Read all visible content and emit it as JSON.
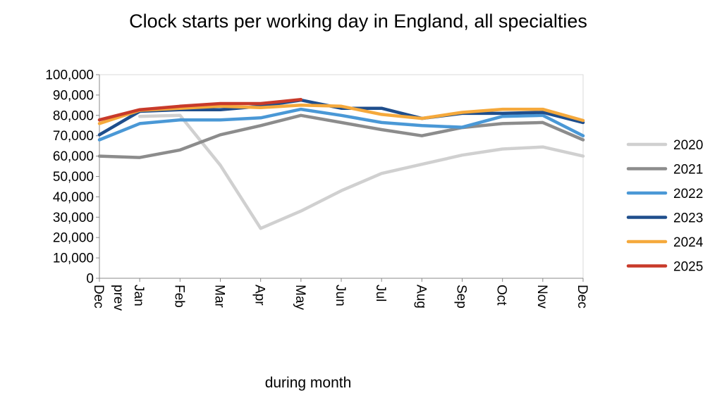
{
  "chart_data": {
    "type": "line",
    "title": "Clock starts per working day in England, all specialties",
    "xlabel": "during month",
    "ylabel": "",
    "categories": [
      "Dec prev",
      "Jan",
      "Feb",
      "Mar",
      "Apr",
      "May",
      "Jun",
      "Jul",
      "Aug",
      "Sep",
      "Oct",
      "Nov",
      "Dec"
    ],
    "ylim": [
      0,
      100000
    ],
    "yticks": [
      "0",
      "10,000",
      "20,000",
      "30,000",
      "40,000",
      "50,000",
      "60,000",
      "70,000",
      "80,000",
      "90,000",
      "100,000"
    ],
    "grid": false,
    "legend_position": "right",
    "series": [
      {
        "name": "2020",
        "color": "#d0d0d0",
        "values": [
          null,
          79500,
          80000,
          55500,
          24500,
          33000,
          43000,
          51500,
          56000,
          60500,
          63500,
          64500,
          60000
        ]
      },
      {
        "name": "2021",
        "color": "#8c8c8c",
        "values": [
          60000,
          59300,
          63000,
          70500,
          75000,
          80000,
          76500,
          73000,
          70000,
          74000,
          76000,
          76500,
          68000
        ]
      },
      {
        "name": "2022",
        "color": "#4a98d6",
        "values": [
          68000,
          76000,
          77800,
          77800,
          78800,
          83000,
          80000,
          76500,
          75000,
          74200,
          79500,
          80000,
          70000
        ]
      },
      {
        "name": "2023",
        "color": "#1f4e8c",
        "values": [
          70500,
          82000,
          82800,
          82800,
          84500,
          87500,
          83500,
          83500,
          78500,
          81000,
          81000,
          81500,
          76500
        ]
      },
      {
        "name": "2024",
        "color": "#f5a93c",
        "values": [
          76000,
          82500,
          83500,
          84500,
          83800,
          85000,
          84500,
          80500,
          78500,
          81500,
          83000,
          83000,
          77500
        ]
      },
      {
        "name": "2025",
        "color": "#c83a2a",
        "values": [
          77800,
          82800,
          84500,
          85800,
          85800,
          87800,
          null,
          null,
          null,
          null,
          null,
          null,
          null
        ]
      }
    ]
  }
}
